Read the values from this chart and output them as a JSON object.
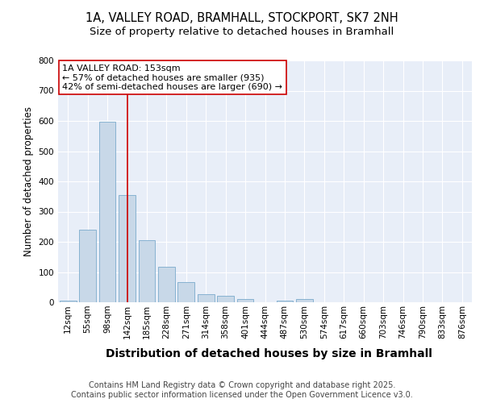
{
  "title_line1": "1A, VALLEY ROAD, BRAMHALL, STOCKPORT, SK7 2NH",
  "title_line2": "Size of property relative to detached houses in Bramhall",
  "xlabel": "Distribution of detached houses by size in Bramhall",
  "ylabel": "Number of detached properties",
  "bar_labels": [
    "12sqm",
    "55sqm",
    "98sqm",
    "142sqm",
    "185sqm",
    "228sqm",
    "271sqm",
    "314sqm",
    "358sqm",
    "401sqm",
    "444sqm",
    "487sqm",
    "530sqm",
    "574sqm",
    "617sqm",
    "660sqm",
    "703sqm",
    "746sqm",
    "790sqm",
    "833sqm",
    "876sqm"
  ],
  "bar_values": [
    5,
    240,
    597,
    355,
    205,
    118,
    68,
    28,
    22,
    10,
    0,
    5,
    10,
    0,
    0,
    0,
    0,
    0,
    0,
    0,
    0
  ],
  "bar_color": "#c8d8e8",
  "bar_edge_color": "#7aaacc",
  "annotation_text": "1A VALLEY ROAD: 153sqm\n← 57% of detached houses are smaller (935)\n42% of semi-detached houses are larger (690) →",
  "vline_color": "#cc0000",
  "annotation_box_facecolor": "#ffffff",
  "annotation_box_edgecolor": "#cc0000",
  "ylim": [
    0,
    800
  ],
  "yticks": [
    0,
    100,
    200,
    300,
    400,
    500,
    600,
    700,
    800
  ],
  "plot_bg_color": "#e8eef8",
  "footer_text": "Contains HM Land Registry data © Crown copyright and database right 2025.\nContains public sector information licensed under the Open Government Licence v3.0.",
  "title_fontsize": 10.5,
  "subtitle_fontsize": 9.5,
  "xlabel_fontsize": 10,
  "ylabel_fontsize": 8.5,
  "tick_fontsize": 7.5,
  "annotation_fontsize": 8,
  "footer_fontsize": 7,
  "vline_pos": 3.0
}
